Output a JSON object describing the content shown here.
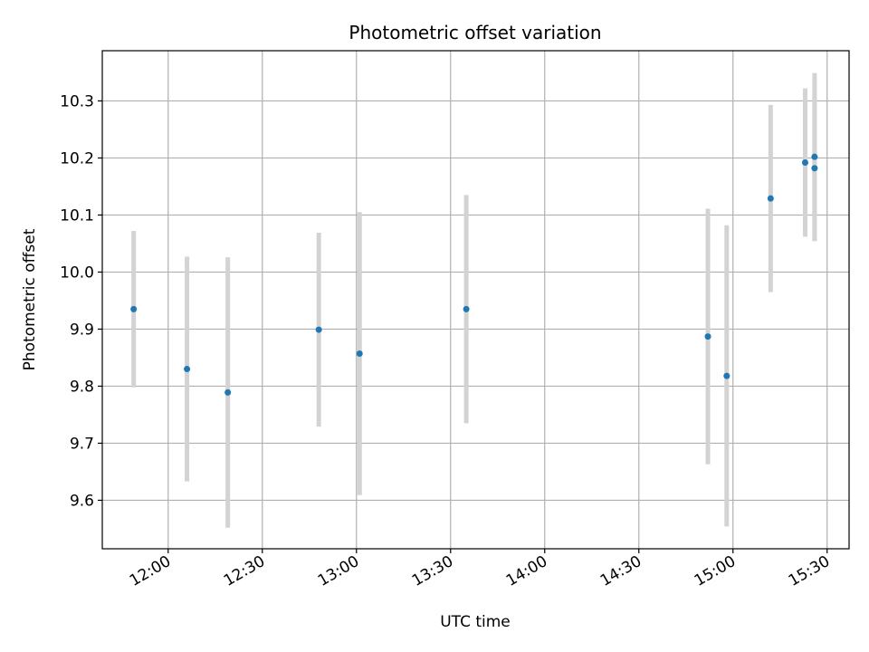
{
  "chart_data": {
    "type": "scatter",
    "title": "Photometric offset variation",
    "xlabel": "UTC time",
    "ylabel": "Photometric offset",
    "x_tick_labels": [
      "12:00",
      "12:30",
      "13:00",
      "13:30",
      "14:00",
      "14:30",
      "15:00",
      "15:30"
    ],
    "y_tick_labels": [
      "9.6",
      "9.7",
      "9.8",
      "9.9",
      "10.0",
      "10.1",
      "10.2",
      "10.3"
    ],
    "xlim": [
      "11:39",
      "15:37"
    ],
    "ylim": [
      9.515,
      10.388
    ],
    "grid": true,
    "marker_color": "#1f77b4",
    "errorbar_color": "#d3d3d3",
    "points": [
      {
        "x": "11:49",
        "y": 9.935,
        "yerr": 0.137
      },
      {
        "x": "12:06",
        "y": 9.83,
        "yerr": 0.197
      },
      {
        "x": "12:19",
        "y": 9.789,
        "yerr": 0.237
      },
      {
        "x": "12:48",
        "y": 9.899,
        "yerr": 0.17
      },
      {
        "x": "13:01",
        "y": 9.857,
        "yerr": 0.248
      },
      {
        "x": "13:35",
        "y": 9.935,
        "yerr": 0.2
      },
      {
        "x": "14:52",
        "y": 9.887,
        "yerr": 0.224
      },
      {
        "x": "14:58",
        "y": 9.818,
        "yerr": 0.264
      },
      {
        "x": "15:12",
        "y": 10.129,
        "yerr": 0.164
      },
      {
        "x": "15:23",
        "y": 10.192,
        "yerr": 0.13
      },
      {
        "x": "15:26",
        "y": 10.182,
        "yerr": 0.128
      },
      {
        "x": "15:26",
        "y": 10.202,
        "yerr": 0.147
      }
    ]
  }
}
